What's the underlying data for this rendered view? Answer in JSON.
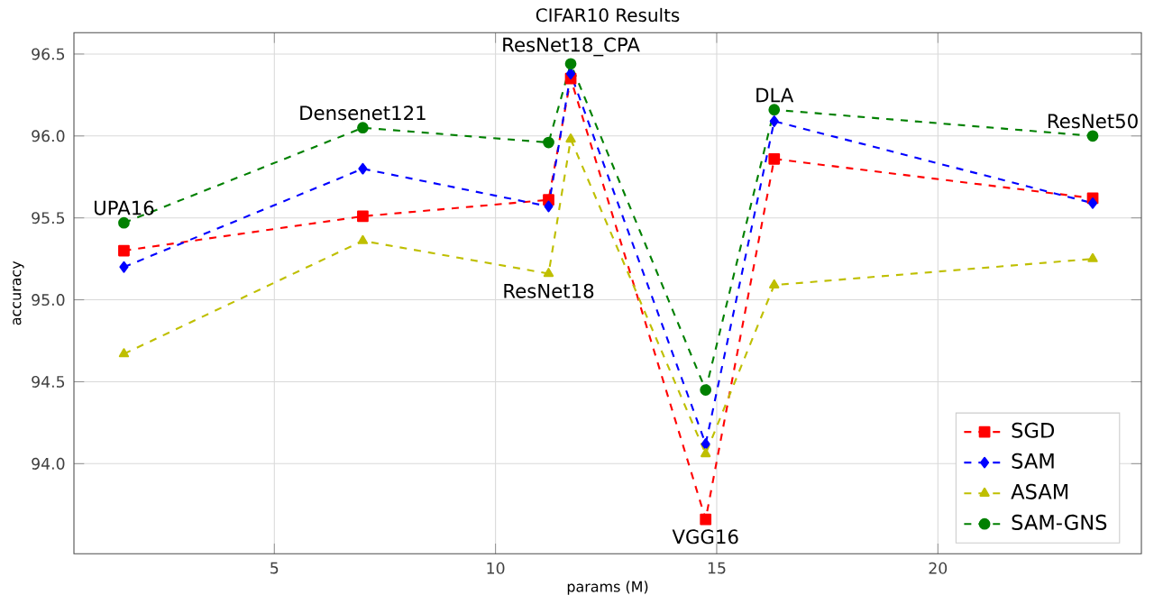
{
  "chart_data": {
    "type": "line",
    "title": "CIFAR10 Results",
    "xlabel": "params (M)",
    "ylabel": "accuracy",
    "x": [
      1.6,
      7.0,
      11.2,
      11.7,
      14.75,
      16.3,
      23.5
    ],
    "series": [
      {
        "name": "SGD",
        "color": "#ff0000",
        "marker": "square",
        "values": [
          95.3,
          95.51,
          95.61,
          96.35,
          93.66,
          95.86,
          95.62
        ]
      },
      {
        "name": "SAM",
        "color": "#0000ff",
        "marker": "diamond",
        "values": [
          95.2,
          95.8,
          95.57,
          96.38,
          94.12,
          96.09,
          95.59
        ]
      },
      {
        "name": "ASAM",
        "color": "#bfbf00",
        "marker": "triangle",
        "values": [
          94.67,
          95.36,
          95.16,
          95.98,
          94.06,
          95.09,
          95.25
        ]
      },
      {
        "name": "SAM-GNS",
        "color": "#008000",
        "marker": "circle",
        "values": [
          95.47,
          96.05,
          95.96,
          96.44,
          94.45,
          96.16,
          96.0
        ]
      }
    ],
    "annotations": [
      {
        "text": "UPA16",
        "x": 1.6,
        "y": 95.47
      },
      {
        "text": "Densenet121",
        "x": 7.0,
        "y": 96.05
      },
      {
        "text": "ResNet18",
        "x": 11.2,
        "y": 95.16
      },
      {
        "text": "ResNet18_CPA",
        "x": 11.7,
        "y": 96.44
      },
      {
        "text": "VGG16",
        "x": 14.75,
        "y": 93.66
      },
      {
        "text": "DLA",
        "x": 16.3,
        "y": 96.16
      },
      {
        "text": "ResNet50",
        "x": 23.5,
        "y": 96.0
      }
    ],
    "xlim": [
      0.47,
      24.6
    ],
    "ylim": [
      93.45,
      96.63
    ],
    "xticks": [
      5,
      10,
      15,
      20
    ],
    "yticks": [
      {
        "value": 94.0,
        "label": "94.0"
      },
      {
        "value": 94.5,
        "label": "94.5"
      },
      {
        "value": 95.0,
        "label": "95.0"
      },
      {
        "value": 95.5,
        "label": "95.5"
      },
      {
        "value": 96.0,
        "label": "96.0"
      },
      {
        "value": 96.5,
        "label": "96.5"
      }
    ],
    "grid": true,
    "legend": "bottom right",
    "line_style": "dashed"
  }
}
